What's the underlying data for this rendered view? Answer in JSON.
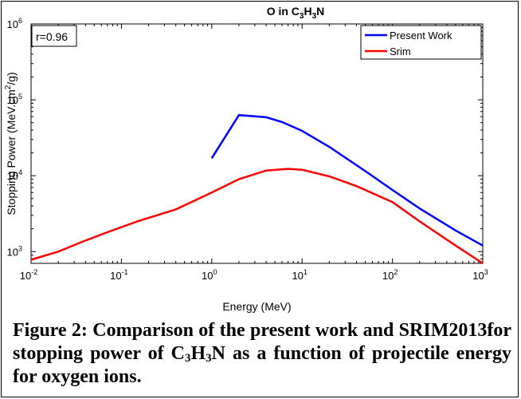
{
  "chart_data": {
    "type": "line",
    "title": "O in C",
    "title_subscripts": [
      "3",
      "H",
      "3",
      "N"
    ],
    "xlabel": "Energy (MeV)",
    "ylabel": "Stopping Power (MeV.cm",
    "ylabel_sup": "2",
    "ylabel_tail": "/g)",
    "xscale": "log",
    "yscale": "log",
    "xlim": [
      0.01,
      1000
    ],
    "ylim": [
      700,
      1000000
    ],
    "xticks": [
      0.01,
      0.1,
      1,
      10,
      100,
      1000
    ],
    "xtick_exponents": [
      "-2",
      "-1",
      "0",
      "1",
      "2",
      "3"
    ],
    "yticks": [
      1000,
      10000,
      100000,
      1000000
    ],
    "ytick_exponents": [
      "3",
      "4",
      "5",
      "6"
    ],
    "tick_base": "10",
    "grid": false,
    "legend_position": "top-right",
    "annotation": "r=0.96",
    "series": [
      {
        "name": "Present Work",
        "color": "#0000ff",
        "x": [
          1,
          2,
          4,
          6,
          10,
          20,
          50,
          100,
          200,
          500,
          1000
        ],
        "y": [
          17000,
          63000,
          59000,
          51000,
          39000,
          24000,
          11500,
          6500,
          3700,
          1900,
          1200
        ]
      },
      {
        "name": "Srim",
        "color": "#ff0000",
        "x": [
          0.01,
          0.02,
          0.04,
          0.07,
          0.15,
          0.4,
          1,
          2,
          4,
          7,
          10,
          20,
          40,
          100,
          200,
          500,
          1000
        ],
        "y": [
          780,
          1000,
          1400,
          1800,
          2500,
          3600,
          6000,
          9000,
          11700,
          12300,
          12000,
          9800,
          7300,
          4500,
          2500,
          1200,
          700
        ]
      }
    ]
  },
  "caption": {
    "part1": "Figure 2: Comparison of the present work and SRIM2013for stopping power of C",
    "sub1": "3",
    "mid1": "H",
    "sub2": "3",
    "part2": "N as a function of projectile energy for oxygen ions."
  }
}
